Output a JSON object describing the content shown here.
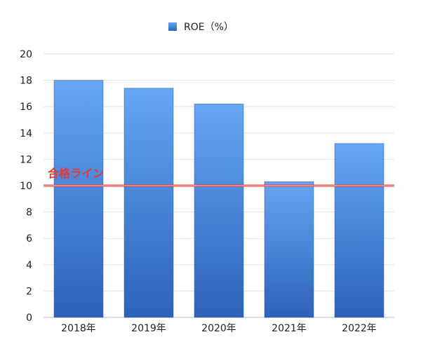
{
  "chart_data": {
    "type": "bar",
    "categories": [
      "2018年",
      "2019年",
      "2020年",
      "2021年",
      "2022年"
    ],
    "series": [
      {
        "name": "ROE（%）",
        "values": [
          18.0,
          17.4,
          16.2,
          10.3,
          13.2
        ]
      }
    ],
    "ylim": [
      0,
      20
    ],
    "yticks": [
      0,
      2,
      4,
      6,
      8,
      10,
      12,
      14,
      16,
      18,
      20
    ],
    "grid": true,
    "legend": "top-center",
    "reference_line": {
      "value": 10,
      "label": "合格ライン",
      "color": "#e53935"
    },
    "colors": {
      "bar_top": "#66a6f2",
      "bar_bottom": "#2d62b9",
      "grid": "#e6e6e6"
    }
  }
}
